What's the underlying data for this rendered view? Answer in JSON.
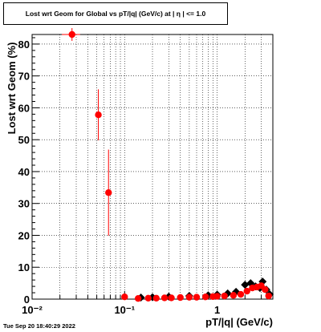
{
  "chart_data": {
    "type": "scatter",
    "title": "Lost wrt Geom for Global vs pT/|q| (GeV/c) at |  η | <= 1.0",
    "xlabel": "pT/|q| (GeV/c)",
    "ylabel": "Lost wrt Geom (%)",
    "x_scale": "log",
    "xlim": [
      0.01,
      4
    ],
    "ylim": [
      0,
      83
    ],
    "grid": true,
    "x_tick_labels": [
      "10⁻²",
      "10⁻¹",
      "1"
    ],
    "y_tick_labels": [
      "0",
      "10",
      "20",
      "30",
      "40",
      "50",
      "60",
      "70",
      "80"
    ],
    "series": [
      {
        "marker": "diamond",
        "color": "#000000",
        "x": [
          0.15,
          0.2,
          0.3,
          0.5,
          0.8,
          1.0,
          1.3,
          1.6,
          2.0,
          2.3,
          2.6,
          2.9,
          3.1,
          3.4,
          3.7
        ],
        "y": [
          0.5,
          0.6,
          0.8,
          1.0,
          1.2,
          1.4,
          1.8,
          2.3,
          4.5,
          5.0,
          4.0,
          3.5,
          5.5,
          3.0,
          1.5
        ]
      },
      {
        "marker": "circle",
        "color": "#ff0000",
        "x": [
          0.027,
          0.052,
          0.067,
          0.1,
          0.14,
          0.18,
          0.22,
          0.27,
          0.32,
          0.4,
          0.5,
          0.6,
          0.75,
          0.9,
          1.0,
          1.2,
          1.5,
          1.8,
          2.1,
          2.4,
          2.7,
          3.0,
          3.3,
          3.6
        ],
        "y": [
          83.0,
          57.8,
          33.4,
          0.7,
          0.2,
          0.3,
          0.3,
          0.4,
          0.4,
          0.5,
          0.6,
          0.6,
          0.7,
          0.8,
          0.9,
          1.0,
          1.2,
          1.5,
          2.5,
          3.5,
          3.8,
          4.2,
          3.0,
          1.0
        ],
        "x_err": [
          0.006,
          0.004,
          0.003,
          0,
          0,
          0,
          0,
          0,
          0,
          0,
          0,
          0,
          0,
          0,
          0,
          0,
          0,
          0,
          0,
          0,
          0,
          0,
          0,
          0
        ],
        "y_err": [
          2.0,
          8.0,
          13.5,
          0,
          0,
          0,
          0,
          0,
          0,
          0,
          0,
          0,
          0,
          0,
          0,
          0,
          0,
          0,
          0,
          0,
          0,
          0,
          0,
          0
        ]
      }
    ]
  },
  "footer": {
    "timestamp": "Tue Sep 20 18:40:29 2022"
  }
}
